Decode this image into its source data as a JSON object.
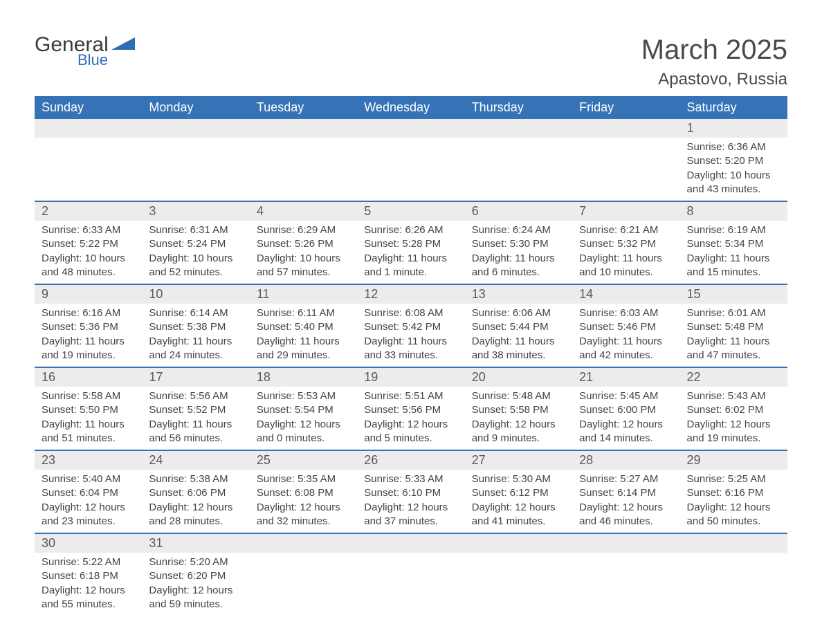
{
  "logo": {
    "text_main": "General",
    "text_sub": "Blue",
    "color_main": "#3a3a3a",
    "color_sub": "#2f6eb5",
    "shape_color": "#2f6eb5"
  },
  "header": {
    "month_title": "March 2025",
    "location": "Apastovo, Russia",
    "title_color": "#4a4a4a",
    "title_fontsize": 40,
    "location_fontsize": 24
  },
  "calendar": {
    "header_bg": "#3672b6",
    "header_text_color": "#ffffff",
    "day_band_bg": "#ececec",
    "day_band_text": "#5a5a5a",
    "row_border_color": "#3672b6",
    "body_text_color": "#444444",
    "weekdays": [
      "Sunday",
      "Monday",
      "Tuesday",
      "Wednesday",
      "Thursday",
      "Friday",
      "Saturday"
    ],
    "weeks": [
      [
        {
          "day": "",
          "lines": []
        },
        {
          "day": "",
          "lines": []
        },
        {
          "day": "",
          "lines": []
        },
        {
          "day": "",
          "lines": []
        },
        {
          "day": "",
          "lines": []
        },
        {
          "day": "",
          "lines": []
        },
        {
          "day": "1",
          "lines": [
            "Sunrise: 6:36 AM",
            "Sunset: 5:20 PM",
            "Daylight: 10 hours and 43 minutes."
          ]
        }
      ],
      [
        {
          "day": "2",
          "lines": [
            "Sunrise: 6:33 AM",
            "Sunset: 5:22 PM",
            "Daylight: 10 hours and 48 minutes."
          ]
        },
        {
          "day": "3",
          "lines": [
            "Sunrise: 6:31 AM",
            "Sunset: 5:24 PM",
            "Daylight: 10 hours and 52 minutes."
          ]
        },
        {
          "day": "4",
          "lines": [
            "Sunrise: 6:29 AM",
            "Sunset: 5:26 PM",
            "Daylight: 10 hours and 57 minutes."
          ]
        },
        {
          "day": "5",
          "lines": [
            "Sunrise: 6:26 AM",
            "Sunset: 5:28 PM",
            "Daylight: 11 hours and 1 minute."
          ]
        },
        {
          "day": "6",
          "lines": [
            "Sunrise: 6:24 AM",
            "Sunset: 5:30 PM",
            "Daylight: 11 hours and 6 minutes."
          ]
        },
        {
          "day": "7",
          "lines": [
            "Sunrise: 6:21 AM",
            "Sunset: 5:32 PM",
            "Daylight: 11 hours and 10 minutes."
          ]
        },
        {
          "day": "8",
          "lines": [
            "Sunrise: 6:19 AM",
            "Sunset: 5:34 PM",
            "Daylight: 11 hours and 15 minutes."
          ]
        }
      ],
      [
        {
          "day": "9",
          "lines": [
            "Sunrise: 6:16 AM",
            "Sunset: 5:36 PM",
            "Daylight: 11 hours and 19 minutes."
          ]
        },
        {
          "day": "10",
          "lines": [
            "Sunrise: 6:14 AM",
            "Sunset: 5:38 PM",
            "Daylight: 11 hours and 24 minutes."
          ]
        },
        {
          "day": "11",
          "lines": [
            "Sunrise: 6:11 AM",
            "Sunset: 5:40 PM",
            "Daylight: 11 hours and 29 minutes."
          ]
        },
        {
          "day": "12",
          "lines": [
            "Sunrise: 6:08 AM",
            "Sunset: 5:42 PM",
            "Daylight: 11 hours and 33 minutes."
          ]
        },
        {
          "day": "13",
          "lines": [
            "Sunrise: 6:06 AM",
            "Sunset: 5:44 PM",
            "Daylight: 11 hours and 38 minutes."
          ]
        },
        {
          "day": "14",
          "lines": [
            "Sunrise: 6:03 AM",
            "Sunset: 5:46 PM",
            "Daylight: 11 hours and 42 minutes."
          ]
        },
        {
          "day": "15",
          "lines": [
            "Sunrise: 6:01 AM",
            "Sunset: 5:48 PM",
            "Daylight: 11 hours and 47 minutes."
          ]
        }
      ],
      [
        {
          "day": "16",
          "lines": [
            "Sunrise: 5:58 AM",
            "Sunset: 5:50 PM",
            "Daylight: 11 hours and 51 minutes."
          ]
        },
        {
          "day": "17",
          "lines": [
            "Sunrise: 5:56 AM",
            "Sunset: 5:52 PM",
            "Daylight: 11 hours and 56 minutes."
          ]
        },
        {
          "day": "18",
          "lines": [
            "Sunrise: 5:53 AM",
            "Sunset: 5:54 PM",
            "Daylight: 12 hours and 0 minutes."
          ]
        },
        {
          "day": "19",
          "lines": [
            "Sunrise: 5:51 AM",
            "Sunset: 5:56 PM",
            "Daylight: 12 hours and 5 minutes."
          ]
        },
        {
          "day": "20",
          "lines": [
            "Sunrise: 5:48 AM",
            "Sunset: 5:58 PM",
            "Daylight: 12 hours and 9 minutes."
          ]
        },
        {
          "day": "21",
          "lines": [
            "Sunrise: 5:45 AM",
            "Sunset: 6:00 PM",
            "Daylight: 12 hours and 14 minutes."
          ]
        },
        {
          "day": "22",
          "lines": [
            "Sunrise: 5:43 AM",
            "Sunset: 6:02 PM",
            "Daylight: 12 hours and 19 minutes."
          ]
        }
      ],
      [
        {
          "day": "23",
          "lines": [
            "Sunrise: 5:40 AM",
            "Sunset: 6:04 PM",
            "Daylight: 12 hours and 23 minutes."
          ]
        },
        {
          "day": "24",
          "lines": [
            "Sunrise: 5:38 AM",
            "Sunset: 6:06 PM",
            "Daylight: 12 hours and 28 minutes."
          ]
        },
        {
          "day": "25",
          "lines": [
            "Sunrise: 5:35 AM",
            "Sunset: 6:08 PM",
            "Daylight: 12 hours and 32 minutes."
          ]
        },
        {
          "day": "26",
          "lines": [
            "Sunrise: 5:33 AM",
            "Sunset: 6:10 PM",
            "Daylight: 12 hours and 37 minutes."
          ]
        },
        {
          "day": "27",
          "lines": [
            "Sunrise: 5:30 AM",
            "Sunset: 6:12 PM",
            "Daylight: 12 hours and 41 minutes."
          ]
        },
        {
          "day": "28",
          "lines": [
            "Sunrise: 5:27 AM",
            "Sunset: 6:14 PM",
            "Daylight: 12 hours and 46 minutes."
          ]
        },
        {
          "day": "29",
          "lines": [
            "Sunrise: 5:25 AM",
            "Sunset: 6:16 PM",
            "Daylight: 12 hours and 50 minutes."
          ]
        }
      ],
      [
        {
          "day": "30",
          "lines": [
            "Sunrise: 5:22 AM",
            "Sunset: 6:18 PM",
            "Daylight: 12 hours and 55 minutes."
          ]
        },
        {
          "day": "31",
          "lines": [
            "Sunrise: 5:20 AM",
            "Sunset: 6:20 PM",
            "Daylight: 12 hours and 59 minutes."
          ]
        },
        {
          "day": "",
          "lines": []
        },
        {
          "day": "",
          "lines": []
        },
        {
          "day": "",
          "lines": []
        },
        {
          "day": "",
          "lines": []
        },
        {
          "day": "",
          "lines": []
        }
      ]
    ]
  }
}
